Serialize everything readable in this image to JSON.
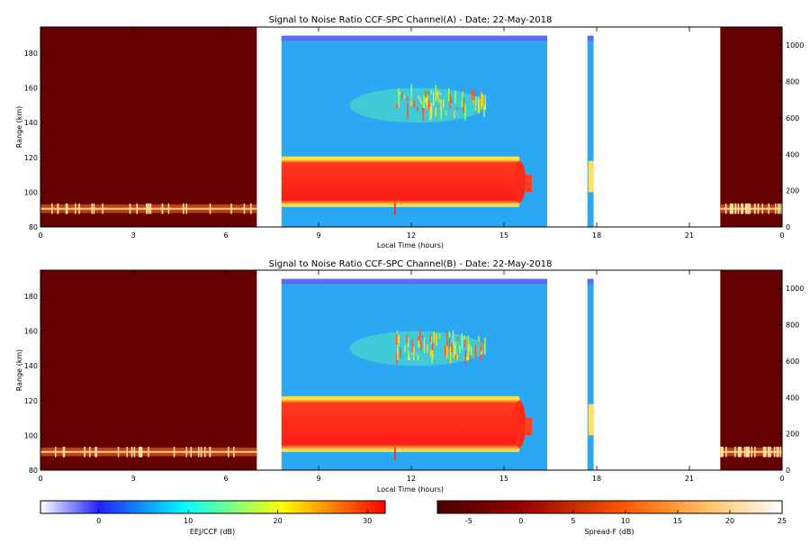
{
  "chart_data": [
    {
      "type": "heatmap",
      "title": "Signal to Noise Ratio CCF-SPC Channel(A) - Date: 22-May-2018",
      "xlabel": "Local Time (hours)",
      "ylabel": "Range (km)",
      "xlim": [
        0,
        24
      ],
      "ylim": [
        80,
        195
      ],
      "y2lim": [
        0,
        1100
      ],
      "xticks": [
        "0",
        "3",
        "6",
        "9",
        "12",
        "15",
        "18",
        "21",
        "0"
      ],
      "yticks": [
        "80",
        "100",
        "120",
        "140",
        "160",
        "180"
      ],
      "y2ticks": [
        "0",
        "200",
        "400",
        "600",
        "800",
        "1000"
      ],
      "spread_f_blocks": [
        {
          "x": [
            0,
            7.0
          ]
        },
        {
          "x": [
            22.0,
            24.0
          ]
        }
      ],
      "spread_f_band_km": [
        88,
        93
      ],
      "eej_block_hours": [
        7.8,
        16.4
      ],
      "eej_strip_hours": [
        17.7,
        17.9
      ],
      "eej_strong_echo": {
        "x": [
          7.8,
          15.5
        ],
        "y_km": [
          93,
          119
        ]
      },
      "eej_upper_echo": {
        "x": [
          10.0,
          14.4
        ],
        "y_km": [
          140,
          160
        ]
      },
      "eej_top_band_km": [
        187,
        190
      ]
    },
    {
      "type": "heatmap",
      "title": "Signal to Noise Ratio CCF-SPC Channel(B) - Date: 22-May-2018",
      "xlabel": "Local Time (hours)",
      "ylabel": "Range (km)",
      "xlim": [
        0,
        24
      ],
      "ylim": [
        80,
        195
      ],
      "y2lim": [
        0,
        1100
      ],
      "xticks": [
        "0",
        "3",
        "6",
        "9",
        "12",
        "15",
        "18",
        "21",
        "0"
      ],
      "yticks": [
        "80",
        "100",
        "120",
        "140",
        "160",
        "180"
      ],
      "y2ticks": [
        "0",
        "200",
        "400",
        "600",
        "800",
        "1000"
      ],
      "spread_f_blocks": [
        {
          "x": [
            0,
            7.0
          ]
        },
        {
          "x": [
            22.0,
            24.0
          ]
        }
      ],
      "spread_f_band_km": [
        88,
        93
      ],
      "eej_block_hours": [
        7.8,
        16.4
      ],
      "eej_strip_hours": [
        17.7,
        17.9
      ],
      "eej_strong_echo": {
        "x": [
          7.8,
          15.5
        ],
        "y_km": [
          92,
          121
        ]
      },
      "eej_upper_echo": {
        "x": [
          10.0,
          14.4
        ],
        "y_km": [
          140,
          160
        ]
      },
      "eej_top_band_km": [
        187,
        190
      ]
    }
  ],
  "colorbars": [
    {
      "label": "EEJ/CCF (dB)",
      "range": [
        -6.5,
        32
      ],
      "ticks": [
        "0",
        "10",
        "20",
        "30"
      ],
      "tick_values": [
        0,
        10,
        20,
        30
      ],
      "colors": [
        "#ffffff",
        "#2222ff",
        "#00ffff",
        "#ffff00",
        "#ff0000"
      ]
    },
    {
      "label": "Spread-F (dB)",
      "range": [
        -8,
        25
      ],
      "ticks": [
        "-5",
        "0",
        "5",
        "10",
        "15",
        "20",
        "25"
      ],
      "tick_values": [
        -5,
        0,
        5,
        10,
        15,
        20,
        25
      ],
      "colors": [
        "#4a0000",
        "#990000",
        "#ff5a00",
        "#ffc060",
        "#ffffff"
      ]
    }
  ],
  "colors": {
    "spread_f_background": "#640000",
    "eej_background": "#2aa8f4",
    "eej_echo": "#ff1c1c",
    "eej_top_band": "#5a6cf0"
  }
}
